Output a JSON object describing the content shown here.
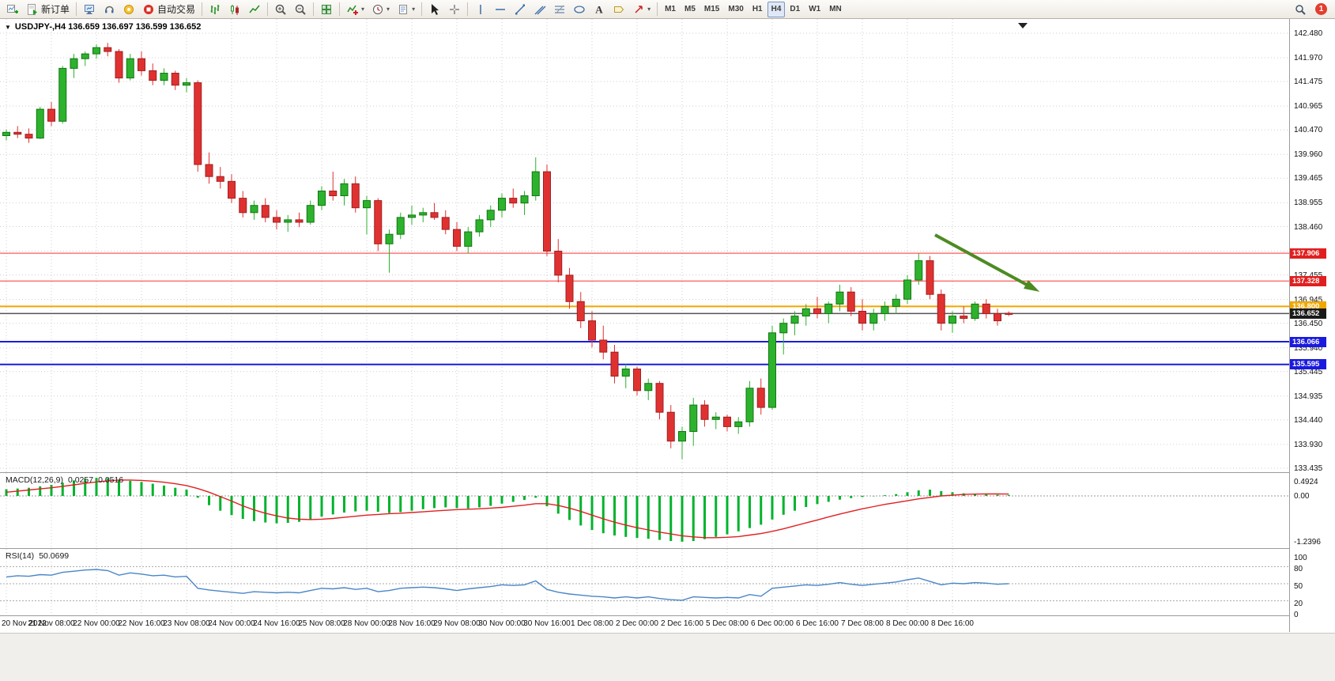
{
  "toolbar": {
    "new_order_label": "新订单",
    "autotrading_label": "自动交易",
    "timeframes": [
      "M1",
      "M5",
      "M15",
      "M30",
      "H1",
      "H4",
      "D1",
      "W1",
      "MN"
    ],
    "active_timeframe": "H4",
    "notification_count": "1"
  },
  "colors": {
    "bull": "#2db22d",
    "bull_border": "#117711",
    "bear": "#e03131",
    "bear_border": "#a02020",
    "grid": "#cfcfcf",
    "macd_hist": "#00b32c",
    "macd_signal": "#e02020",
    "rsi_line": "#4a86c8",
    "arrow": "#4d8b22",
    "current_line": "#555555"
  },
  "chart": {
    "symbol_header": "USDJPY-,H4 136.659 136.697 136.599 136.652",
    "price_axis": [
      "142.480",
      "141.970",
      "141.475",
      "140.965",
      "140.470",
      "139.960",
      "139.465",
      "138.955",
      "138.460",
      "137.950",
      "137.455",
      "136.945",
      "136.450",
      "135.940",
      "135.445",
      "134.935",
      "134.440",
      "133.930",
      "133.435"
    ],
    "levels": [
      {
        "value": "137.906",
        "color": "#ff3333",
        "width": 1,
        "tag_bg": "#e02020",
        "tag_fg": "#ffffff"
      },
      {
        "value": "137.328",
        "color": "#ff3333",
        "width": 1,
        "tag_bg": "#e02020",
        "tag_fg": "#ffffff"
      },
      {
        "value": "136.800",
        "color": "#f0a800",
        "width": 2,
        "tag_bg": "#f0a800",
        "tag_fg": "#ffffff"
      },
      {
        "value": "136.652",
        "color": "#555555",
        "width": 1.5,
        "tag_bg": "#1a1a1a",
        "tag_fg": "#ffffff"
      },
      {
        "value": "136.066",
        "color": "#1a1adf",
        "width": 2,
        "tag_bg": "#1a1adf",
        "tag_fg": "#ffffff"
      },
      {
        "value": "135.595",
        "color": "#1a1adf",
        "width": 2,
        "tag_bg": "#1a1adf",
        "tag_fg": "#ffffff"
      }
    ],
    "time_axis": [
      "20 Nov 2022",
      "21 Nov 08:00",
      "22 Nov 00:00",
      "22 Nov 16:00",
      "23 Nov 08:00",
      "24 Nov 00:00",
      "24 Nov 16:00",
      "25 Nov 08:00",
      "28 Nov 00:00",
      "28 Nov 16:00",
      "29 Nov 08:00",
      "30 Nov 00:00",
      "30 Nov 16:00",
      "1 Dec 08:00",
      "2 Dec 00:00",
      "2 Dec 16:00",
      "5 Dec 08:00",
      "6 Dec 00:00",
      "6 Dec 16:00",
      "7 Dec 08:00",
      "8 Dec 00:00",
      "8 Dec 16:00"
    ]
  },
  "chart_data": {
    "type": "candlestick",
    "symbol": "USDJPY-",
    "timeframe": "H4",
    "ohlc_current": {
      "open": "136.659",
      "high": "136.697",
      "low": "136.599",
      "close": "136.652"
    },
    "y_range": [
      133.435,
      142.48
    ],
    "candles": [
      [
        140.35,
        140.48,
        140.25,
        140.42
      ],
      [
        140.42,
        140.55,
        140.3,
        140.38
      ],
      [
        140.38,
        140.5,
        140.2,
        140.3
      ],
      [
        140.3,
        140.95,
        140.28,
        140.9
      ],
      [
        140.9,
        141.05,
        140.55,
        140.65
      ],
      [
        140.65,
        141.8,
        140.6,
        141.75
      ],
      [
        141.75,
        142.05,
        141.55,
        141.95
      ],
      [
        141.95,
        142.1,
        141.8,
        142.05
      ],
      [
        142.05,
        142.25,
        141.95,
        142.18
      ],
      [
        142.18,
        142.28,
        142.0,
        142.1
      ],
      [
        142.1,
        142.15,
        141.45,
        141.55
      ],
      [
        141.55,
        142.05,
        141.5,
        141.95
      ],
      [
        141.95,
        142.1,
        141.6,
        141.7
      ],
      [
        141.7,
        141.85,
        141.4,
        141.5
      ],
      [
        141.5,
        141.75,
        141.4,
        141.65
      ],
      [
        141.65,
        141.7,
        141.3,
        141.4
      ],
      [
        141.4,
        141.55,
        141.25,
        141.45
      ],
      [
        141.45,
        141.5,
        139.6,
        139.75
      ],
      [
        139.75,
        140.0,
        139.35,
        139.5
      ],
      [
        139.5,
        139.7,
        139.25,
        139.4
      ],
      [
        139.4,
        139.55,
        138.95,
        139.05
      ],
      [
        139.05,
        139.2,
        138.65,
        138.75
      ],
      [
        138.75,
        139.0,
        138.6,
        138.9
      ],
      [
        138.9,
        139.05,
        138.55,
        138.65
      ],
      [
        138.65,
        138.8,
        138.4,
        138.55
      ],
      [
        138.55,
        138.7,
        138.35,
        138.6
      ],
      [
        138.6,
        138.75,
        138.45,
        138.55
      ],
      [
        138.55,
        139.0,
        138.5,
        138.9
      ],
      [
        138.9,
        139.3,
        138.8,
        139.2
      ],
      [
        139.2,
        139.6,
        139.0,
        139.1
      ],
      [
        139.1,
        139.45,
        138.9,
        139.35
      ],
      [
        139.35,
        139.5,
        138.75,
        138.85
      ],
      [
        138.85,
        139.1,
        138.3,
        139.0
      ],
      [
        139.0,
        139.05,
        137.95,
        138.1
      ],
      [
        138.1,
        138.4,
        137.5,
        138.3
      ],
      [
        138.3,
        138.75,
        138.2,
        138.65
      ],
      [
        138.65,
        138.9,
        138.5,
        138.7
      ],
      [
        138.7,
        138.85,
        138.55,
        138.75
      ],
      [
        138.75,
        138.95,
        138.6,
        138.65
      ],
      [
        138.65,
        138.8,
        138.3,
        138.4
      ],
      [
        138.4,
        138.55,
        137.95,
        138.05
      ],
      [
        138.05,
        138.45,
        137.9,
        138.35
      ],
      [
        138.35,
        138.7,
        138.25,
        138.6
      ],
      [
        138.6,
        138.9,
        138.45,
        138.8
      ],
      [
        138.8,
        139.15,
        138.65,
        139.05
      ],
      [
        139.05,
        139.25,
        138.85,
        138.95
      ],
      [
        138.95,
        139.2,
        138.7,
        139.1
      ],
      [
        139.1,
        139.9,
        139.0,
        139.6
      ],
      [
        139.6,
        139.75,
        137.85,
        137.95
      ],
      [
        137.95,
        138.2,
        137.3,
        137.45
      ],
      [
        137.45,
        137.6,
        136.75,
        136.9
      ],
      [
        136.9,
        137.1,
        136.35,
        136.5
      ],
      [
        136.5,
        136.7,
        135.95,
        136.1
      ],
      [
        136.1,
        136.4,
        135.7,
        135.85
      ],
      [
        135.85,
        136.0,
        135.2,
        135.35
      ],
      [
        135.35,
        135.6,
        135.1,
        135.5
      ],
      [
        135.5,
        135.55,
        134.95,
        135.05
      ],
      [
        135.05,
        135.3,
        134.85,
        135.2
      ],
      [
        135.2,
        135.25,
        134.45,
        134.6
      ],
      [
        134.6,
        134.75,
        133.85,
        134.0
      ],
      [
        134.0,
        134.3,
        133.62,
        134.2
      ],
      [
        134.2,
        134.9,
        133.9,
        134.75
      ],
      [
        134.75,
        134.85,
        134.3,
        134.45
      ],
      [
        134.45,
        134.6,
        134.25,
        134.5
      ],
      [
        134.5,
        134.55,
        134.2,
        134.3
      ],
      [
        134.3,
        134.5,
        134.15,
        134.4
      ],
      [
        134.4,
        135.25,
        134.3,
        135.1
      ],
      [
        135.1,
        135.3,
        134.55,
        134.7
      ],
      [
        134.7,
        136.4,
        134.65,
        136.25
      ],
      [
        136.25,
        136.55,
        135.8,
        136.45
      ],
      [
        136.45,
        136.7,
        136.2,
        136.6
      ],
      [
        136.6,
        136.85,
        136.4,
        136.75
      ],
      [
        136.75,
        137.0,
        136.55,
        136.65
      ],
      [
        136.65,
        136.9,
        136.45,
        136.85
      ],
      [
        136.85,
        137.25,
        136.7,
        137.1
      ],
      [
        137.1,
        137.2,
        136.6,
        136.7
      ],
      [
        136.7,
        136.95,
        136.3,
        136.45
      ],
      [
        136.45,
        136.75,
        136.3,
        136.65
      ],
      [
        136.65,
        136.9,
        136.5,
        136.8
      ],
      [
        136.8,
        137.05,
        136.65,
        136.95
      ],
      [
        136.95,
        137.45,
        136.85,
        137.35
      ],
      [
        137.35,
        137.9,
        137.25,
        137.75
      ],
      [
        137.75,
        137.85,
        136.95,
        137.05
      ],
      [
        137.05,
        137.15,
        136.3,
        136.45
      ],
      [
        136.45,
        136.7,
        136.25,
        136.6
      ],
      [
        136.6,
        136.8,
        136.45,
        136.55
      ],
      [
        136.55,
        136.9,
        136.5,
        136.85
      ],
      [
        136.85,
        136.95,
        136.55,
        136.65
      ],
      [
        136.65,
        136.75,
        136.4,
        136.5
      ],
      [
        136.659,
        136.697,
        136.599,
        136.652
      ]
    ],
    "macd": {
      "label": "MACD(12,26,9)",
      "value_hist": "0.0257",
      "value_signal": "0.0516",
      "axis": [
        "0.4924",
        "0.00",
        "-1.2396"
      ],
      "range": [
        -1.2396,
        0.4924
      ],
      "histogram": [
        0.18,
        0.2,
        0.22,
        0.26,
        0.3,
        0.36,
        0.42,
        0.46,
        0.49,
        0.48,
        0.44,
        0.41,
        0.38,
        0.33,
        0.28,
        0.22,
        0.17,
        -0.05,
        -0.25,
        -0.4,
        -0.52,
        -0.62,
        -0.68,
        -0.72,
        -0.74,
        -0.73,
        -0.7,
        -0.64,
        -0.56,
        -0.5,
        -0.45,
        -0.42,
        -0.4,
        -0.43,
        -0.46,
        -0.44,
        -0.4,
        -0.36,
        -0.33,
        -0.31,
        -0.33,
        -0.34,
        -0.31,
        -0.27,
        -0.21,
        -0.16,
        -0.11,
        -0.05,
        -0.28,
        -0.48,
        -0.65,
        -0.8,
        -0.92,
        -1.01,
        -1.07,
        -1.11,
        -1.14,
        -1.16,
        -1.19,
        -1.22,
        -1.24,
        -1.22,
        -1.17,
        -1.11,
        -1.04,
        -0.96,
        -0.87,
        -0.78,
        -0.64,
        -0.51,
        -0.4,
        -0.3,
        -0.22,
        -0.16,
        -0.1,
        -0.06,
        -0.03,
        -0.01,
        0.02,
        0.05,
        0.1,
        0.15,
        0.17,
        0.13,
        0.1,
        0.07,
        0.05,
        0.04,
        0.03,
        0.0257
      ],
      "signal": [
        0.1,
        0.13,
        0.16,
        0.19,
        0.22,
        0.26,
        0.3,
        0.34,
        0.38,
        0.41,
        0.43,
        0.43,
        0.42,
        0.4,
        0.37,
        0.33,
        0.28,
        0.2,
        0.1,
        -0.02,
        -0.14,
        -0.27,
        -0.38,
        -0.47,
        -0.54,
        -0.6,
        -0.63,
        -0.64,
        -0.63,
        -0.61,
        -0.58,
        -0.55,
        -0.52,
        -0.5,
        -0.48,
        -0.47,
        -0.45,
        -0.43,
        -0.41,
        -0.39,
        -0.37,
        -0.36,
        -0.35,
        -0.33,
        -0.31,
        -0.28,
        -0.25,
        -0.21,
        -0.21,
        -0.26,
        -0.33,
        -0.42,
        -0.52,
        -0.62,
        -0.71,
        -0.79,
        -0.86,
        -0.92,
        -0.98,
        -1.03,
        -1.08,
        -1.11,
        -1.13,
        -1.13,
        -1.12,
        -1.1,
        -1.06,
        -1.02,
        -0.96,
        -0.89,
        -0.81,
        -0.73,
        -0.65,
        -0.57,
        -0.49,
        -0.42,
        -0.35,
        -0.29,
        -0.23,
        -0.18,
        -0.13,
        -0.08,
        -0.04,
        0.0,
        0.02,
        0.04,
        0.05,
        0.055,
        0.053,
        0.0516
      ]
    },
    "rsi": {
      "label": "RSI(14)",
      "value": "50.0699",
      "axis": [
        "100",
        "80",
        "50",
        "20",
        "0"
      ],
      "levels": [
        80,
        50,
        20
      ],
      "values": [
        62,
        64,
        63,
        66,
        65,
        70,
        72,
        74,
        75,
        73,
        65,
        69,
        67,
        64,
        65,
        62,
        63,
        42,
        39,
        37,
        35,
        33,
        36,
        35,
        34,
        35,
        34,
        38,
        42,
        41,
        43,
        40,
        42,
        36,
        38,
        42,
        43,
        44,
        43,
        41,
        38,
        41,
        43,
        45,
        48,
        47,
        48,
        55,
        40,
        35,
        32,
        30,
        28,
        27,
        25,
        27,
        25,
        27,
        24,
        22,
        21,
        27,
        26,
        25,
        26,
        25,
        31,
        28,
        42,
        44,
        46,
        48,
        47,
        49,
        52,
        49,
        47,
        49,
        51,
        53,
        57,
        60,
        54,
        48,
        51,
        50,
        52,
        51,
        49,
        50.07
      ]
    },
    "annotation_arrow": {
      "from": [
        1183,
        297
      ],
      "to": [
        1310,
        366
      ],
      "color": "#4d8b22"
    }
  }
}
